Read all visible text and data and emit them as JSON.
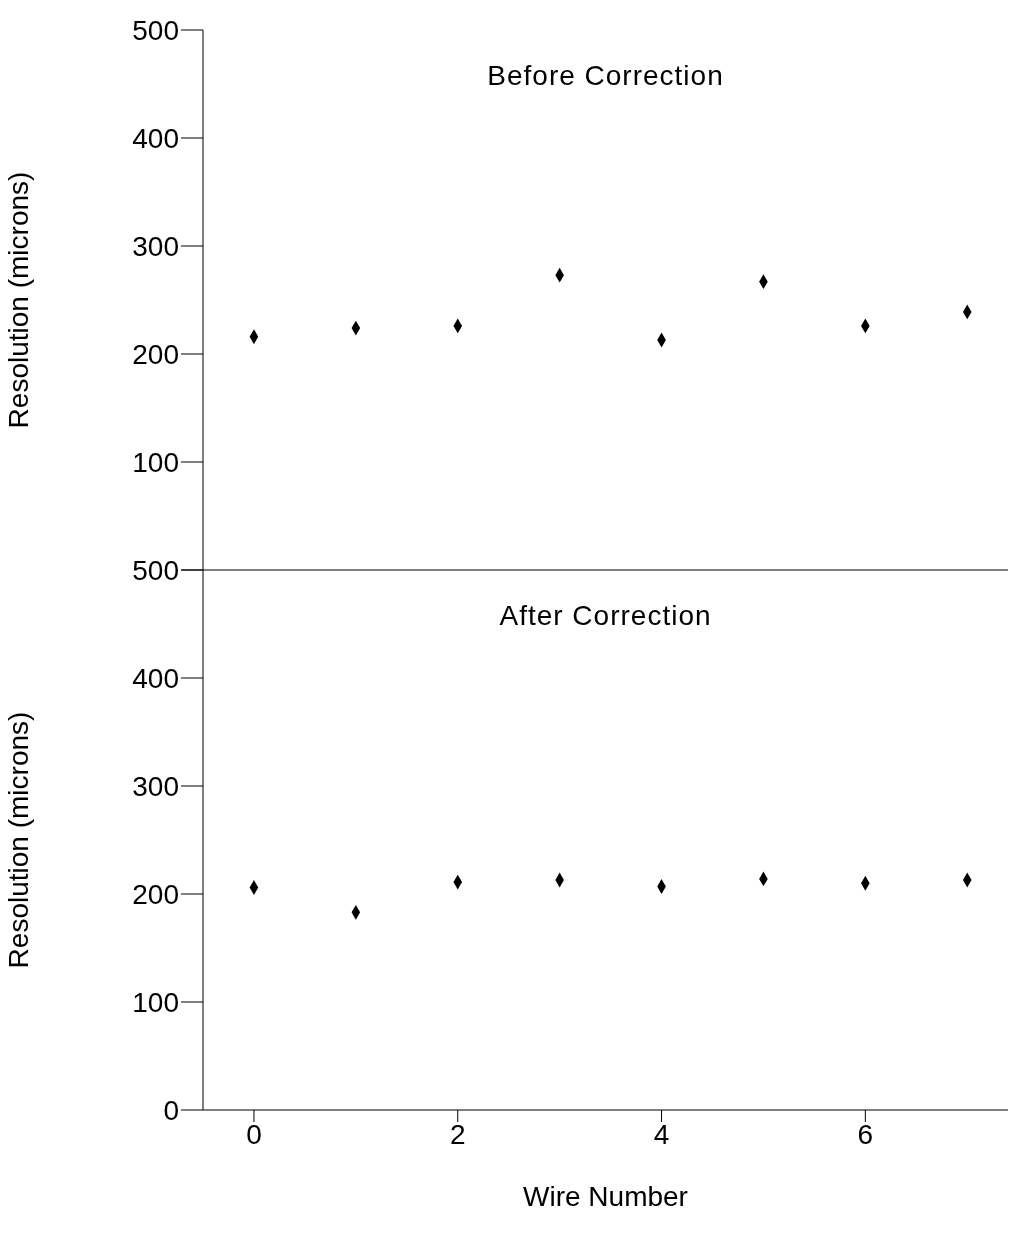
{
  "chart_data": [
    {
      "type": "scatter",
      "title": "Before Correction",
      "ylabel": "Resolution (microns)",
      "x": [
        0,
        1,
        2,
        3,
        4,
        5,
        6,
        7
      ],
      "series": [
        {
          "color": "#000000",
          "values": [
            216,
            224,
            226,
            273,
            213,
            267,
            226,
            239
          ]
        }
      ],
      "xlim": [
        -0.5,
        7.4
      ],
      "xticks": [
        0,
        2,
        4,
        6
      ],
      "ylim": [
        0,
        500
      ],
      "yticks": [
        {
          "value": 0,
          "label": null
        },
        100,
        200,
        300,
        400,
        500
      ],
      "marker": "diamond",
      "tick_labels": "y"
    },
    {
      "type": "scatter",
      "title": "After Correction",
      "ylabel": "Resolution (microns)",
      "xlabel": "Wire Number",
      "x": [
        0,
        1,
        2,
        3,
        4,
        5,
        6,
        7
      ],
      "series": [
        {
          "color": "#000000",
          "values": [
            206,
            183,
            211,
            213,
            207,
            214,
            210,
            213
          ]
        }
      ],
      "xlim": [
        -0.5,
        7.4
      ],
      "xticks": [
        0,
        2,
        4,
        6
      ],
      "ylim": [
        0,
        500
      ],
      "yticks": [
        0,
        100,
        200,
        300,
        400,
        500
      ],
      "marker": "diamond"
    }
  ]
}
